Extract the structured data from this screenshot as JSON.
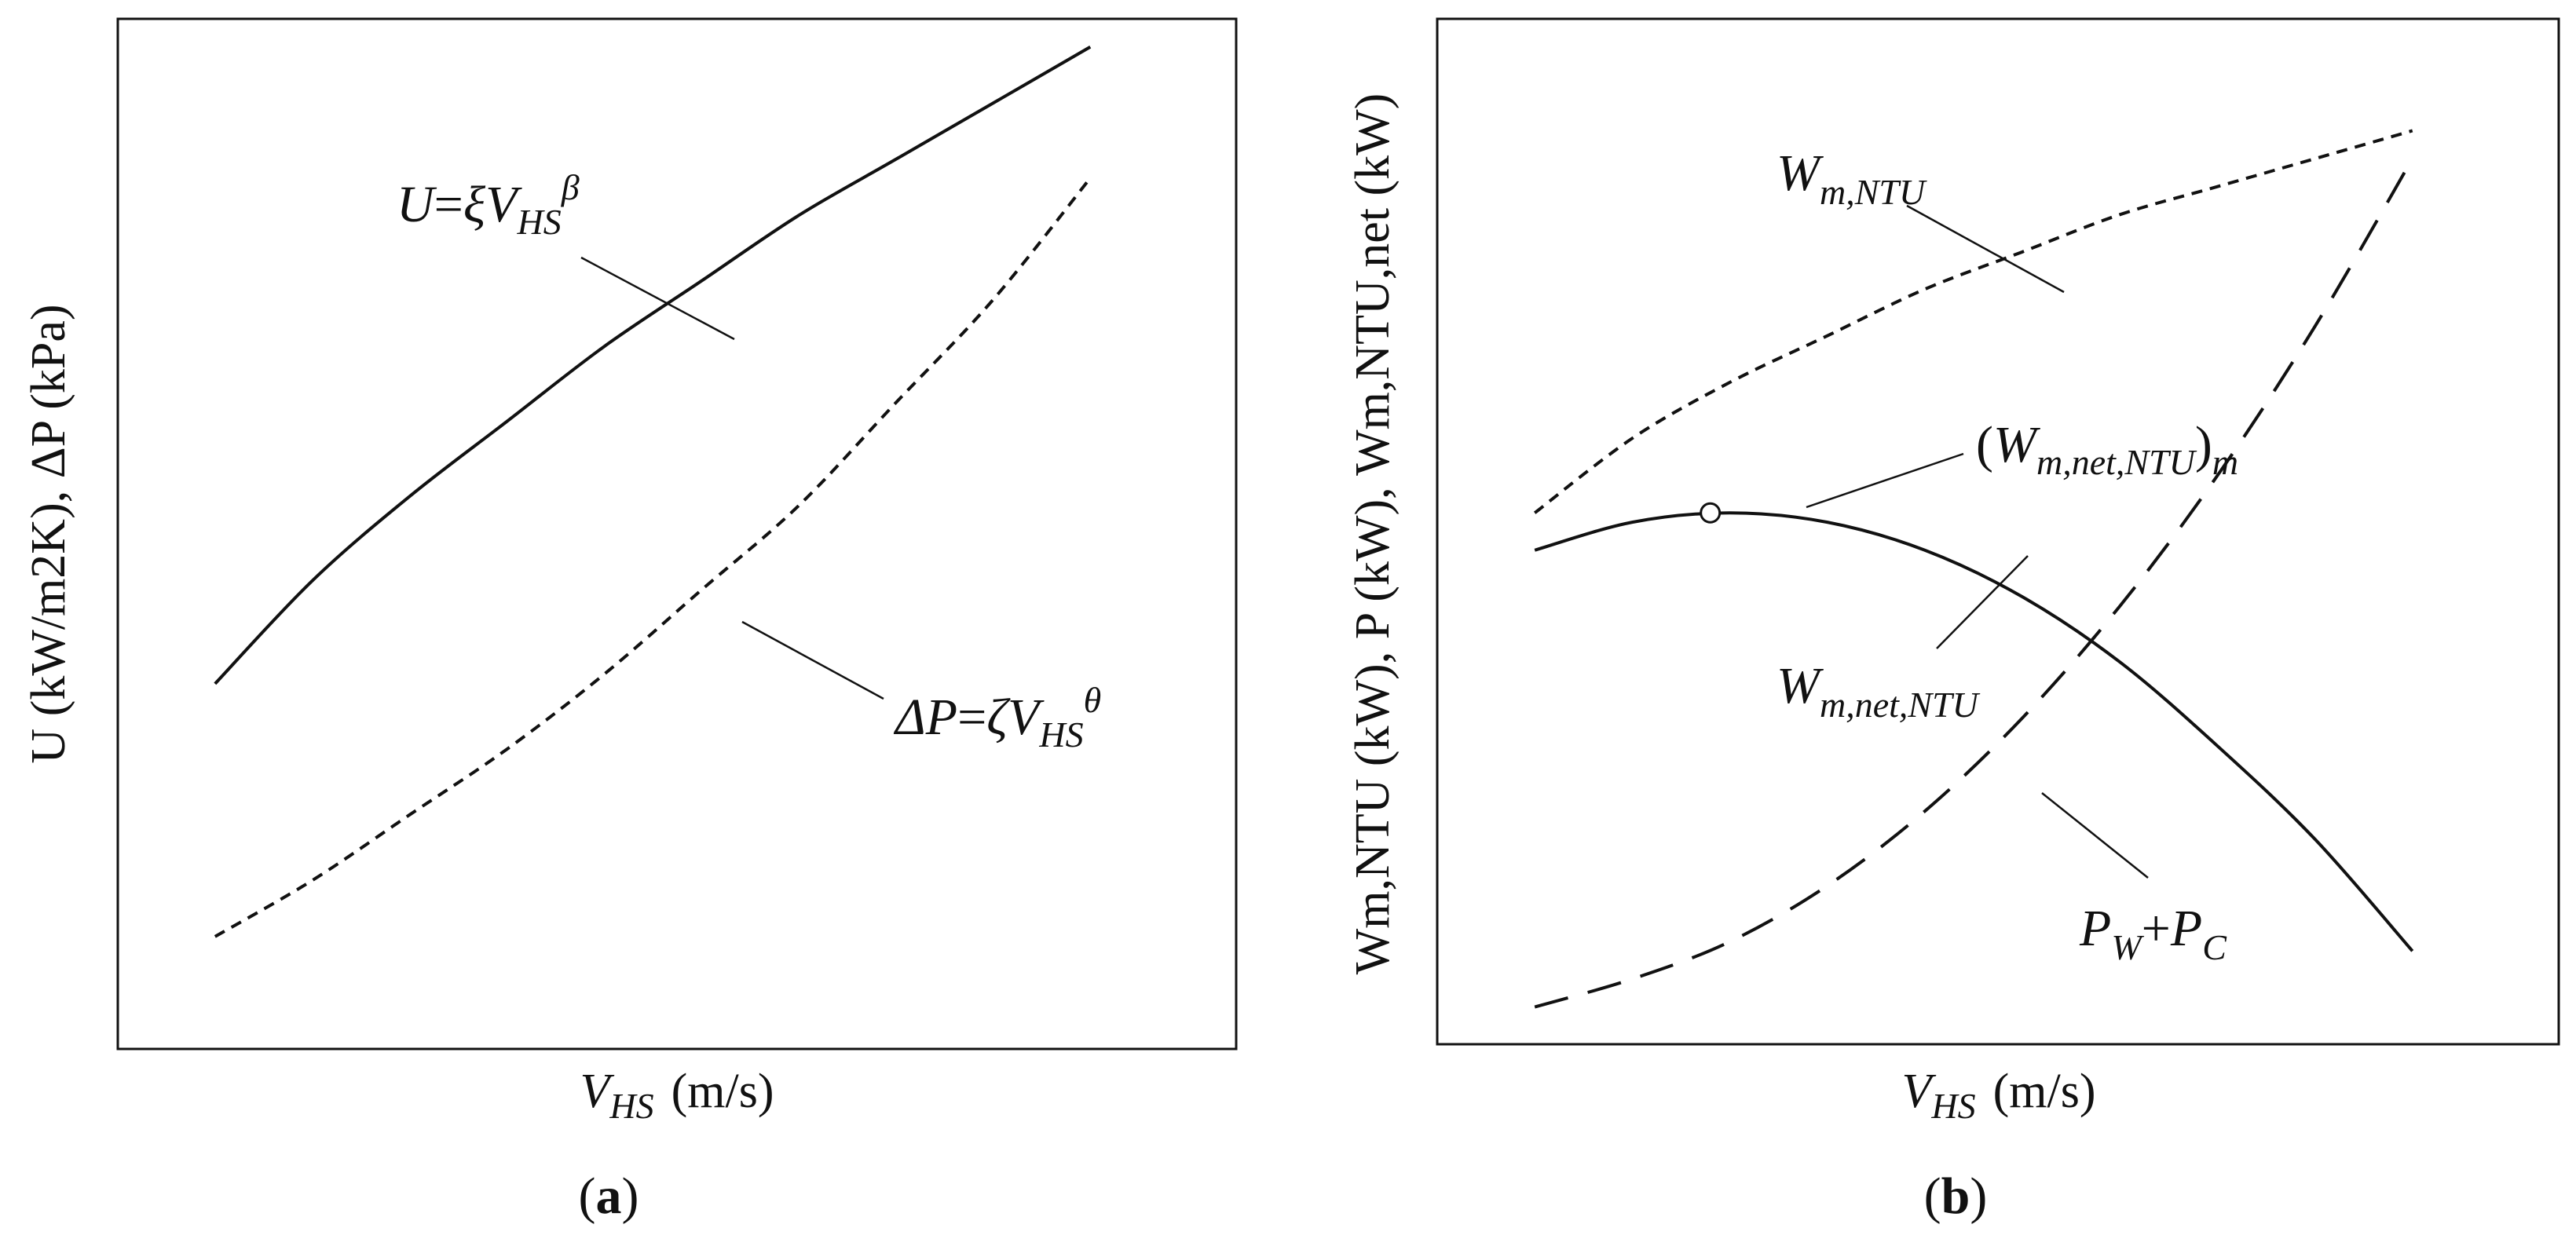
{
  "figure": {
    "panel_a_label": {
      "open": "(",
      "letter": "a",
      "close": ")"
    },
    "panel_b_label": {
      "open": "(",
      "letter": "b",
      "close": ")"
    }
  },
  "chart_data": [
    {
      "type": "line",
      "panel": "a",
      "title": "",
      "xlabel": {
        "main": "V",
        "sub": "HS",
        "units": "(m/s)"
      },
      "ylabel": {
        "text": "U (kW/m2K), ΔP (kPa)"
      },
      "x_ticks": [],
      "y_ticks": [],
      "grid": false,
      "xlim": [
        0,
        1.15
      ],
      "ylim": [
        0,
        1.1
      ],
      "series": [
        {
          "style": "solid",
          "label_text": {
            "lhs": "U",
            "eq": "=",
            "coef": "ξ",
            "var": "V",
            "sub": "HS",
            "sup": "β"
          },
          "points": [
            [
              0.1,
              0.39
            ],
            [
              0.2,
              0.5
            ],
            [
              0.3,
              0.59
            ],
            [
              0.4,
              0.67
            ],
            [
              0.5,
              0.75
            ],
            [
              0.6,
              0.82
            ],
            [
              0.7,
              0.89
            ],
            [
              0.8,
              0.95
            ],
            [
              0.9,
              1.01
            ],
            [
              1.0,
              1.07
            ]
          ]
        },
        {
          "style": "dashed-short",
          "label_text": {
            "lhs": "ΔP",
            "eq": "=",
            "coef": "ζ",
            "var": "V",
            "sub": "HS",
            "sup": "θ"
          },
          "points": [
            [
              0.1,
              0.12
            ],
            [
              0.2,
              0.18
            ],
            [
              0.3,
              0.25
            ],
            [
              0.4,
              0.32
            ],
            [
              0.5,
              0.4
            ],
            [
              0.6,
              0.49
            ],
            [
              0.7,
              0.58
            ],
            [
              0.8,
              0.69
            ],
            [
              0.9,
              0.8
            ],
            [
              1.0,
              0.93
            ]
          ]
        }
      ]
    },
    {
      "type": "line",
      "panel": "b",
      "title": "",
      "xlabel": {
        "main": "V",
        "sub": "HS",
        "units": "(m/s)"
      },
      "ylabel": {
        "text": "Wm,NTU (kW), P (kW), Wm,NTU,net (kW)"
      },
      "x_ticks": [],
      "y_ticks": [],
      "grid": false,
      "xlim": [
        0,
        1.15
      ],
      "ylim": [
        0,
        1.1
      ],
      "series": [
        {
          "style": "dashed-short",
          "label_text": {
            "main": "W",
            "sub": "m,NTU"
          },
          "points": [
            [
              0.1,
              0.57
            ],
            [
              0.2,
              0.65
            ],
            [
              0.3,
              0.71
            ],
            [
              0.4,
              0.76
            ],
            [
              0.5,
              0.81
            ],
            [
              0.6,
              0.85
            ],
            [
              0.7,
              0.89
            ],
            [
              0.8,
              0.92
            ],
            [
              0.9,
              0.95
            ],
            [
              1.0,
              0.98
            ]
          ]
        },
        {
          "style": "solid",
          "label_text": {
            "main": "W",
            "sub": "m,net,NTU"
          },
          "points": [
            [
              0.1,
              0.53
            ],
            [
              0.2,
              0.56
            ],
            [
              0.3,
              0.57
            ],
            [
              0.4,
              0.56
            ],
            [
              0.5,
              0.53
            ],
            [
              0.6,
              0.48
            ],
            [
              0.7,
              0.41
            ],
            [
              0.8,
              0.32
            ],
            [
              0.9,
              0.22
            ],
            [
              1.0,
              0.1
            ]
          ]
        },
        {
          "style": "dashed-long",
          "label_text": {
            "p1": "P",
            "s1": "W",
            "plus": "+",
            "p2": "P",
            "s2": "C"
          },
          "points": [
            [
              0.1,
              0.04
            ],
            [
              0.2,
              0.07
            ],
            [
              0.3,
              0.11
            ],
            [
              0.4,
              0.17
            ],
            [
              0.5,
              0.25
            ],
            [
              0.6,
              0.35
            ],
            [
              0.7,
              0.47
            ],
            [
              0.8,
              0.61
            ],
            [
              0.9,
              0.77
            ],
            [
              1.0,
              0.95
            ]
          ]
        }
      ],
      "annotations": [
        {
          "marker": "open-circle",
          "x": 0.28,
          "y": 0.57,
          "label_text": {
            "open": "(",
            "main": "W",
            "sub1": "m,net,NTU",
            "close": ")",
            "sub2": "m"
          }
        }
      ]
    }
  ]
}
